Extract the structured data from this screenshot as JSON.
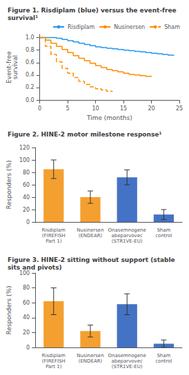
{
  "chart_data": [
    {
      "type": "step",
      "title": "Figure 1. Risdiplam (blue) versus the event-free survival¹",
      "xlabel": "Time (months)",
      "ylabel": "Event-free\nsurvival",
      "xlim": [
        0,
        25
      ],
      "xticks": [
        0,
        5,
        10,
        15,
        20,
        25
      ],
      "ylim": [
        0,
        1.05
      ],
      "yticks": [
        {
          "value": 0,
          "label": "0.0"
        },
        0.2,
        0.4,
        0.6,
        0.8,
        {
          "value": 1,
          "label": "1.0"
        }
      ],
      "grid": false,
      "legend": "upper right",
      "series": [
        {
          "name": "Risdiplam",
          "color": "#2196f3",
          "line_style": "solid",
          "x": [
            0,
            1,
            2,
            3,
            4,
            5,
            6,
            7,
            8,
            9,
            10,
            11,
            12,
            13,
            14,
            15,
            16,
            17,
            18,
            19,
            20,
            21,
            22,
            23,
            24
          ],
          "values": [
            1.0,
            1.0,
            1.0,
            0.99,
            0.97,
            0.95,
            0.93,
            0.91,
            0.89,
            0.87,
            0.85,
            0.84,
            0.83,
            0.82,
            0.81,
            0.8,
            0.79,
            0.78,
            0.77,
            0.76,
            0.75,
            0.74,
            0.73,
            0.72,
            0.71
          ]
        },
        {
          "name": "Nusinersen",
          "color": "#ff8c00",
          "line_style": "solid",
          "x": [
            0,
            1,
            2,
            3,
            4,
            5,
            6,
            7,
            8,
            9,
            10,
            11,
            12,
            13,
            14,
            15,
            16,
            17,
            18,
            19,
            20
          ],
          "values": [
            1.0,
            0.96,
            0.91,
            0.86,
            0.81,
            0.76,
            0.71,
            0.67,
            0.63,
            0.59,
            0.55,
            0.52,
            0.49,
            0.47,
            0.45,
            0.43,
            0.41,
            0.4,
            0.39,
            0.38,
            0.37
          ]
        },
        {
          "name": "Sham",
          "color": "#ff8c00",
          "line_style": "dashed",
          "x": [
            0,
            1,
            2,
            3,
            4,
            5,
            6,
            7,
            8,
            9,
            10,
            11,
            12,
            13
          ],
          "values": [
            1.0,
            0.86,
            0.73,
            0.61,
            0.51,
            0.43,
            0.36,
            0.3,
            0.25,
            0.21,
            0.18,
            0.16,
            0.14,
            0.13
          ]
        }
      ]
    },
    {
      "type": "bar",
      "title": "Figure 2. HINE-2 motor milestone response¹",
      "ylabel": "Responders (%)",
      "categories": [
        "Risdiplam\n(FIREFISH\nPart 1)",
        "Nusinersen\n(ENDEAR)",
        "Onasemnogene\nabeparvovec\n(STR1VE-EU)",
        "Sham\ncontrol"
      ],
      "values": [
        85,
        40,
        72,
        12
      ],
      "errors": [
        15,
        10,
        12,
        8
      ],
      "colors": [
        "#f4a030",
        "#f4a030",
        "#4472c4",
        "#4472c4"
      ],
      "ylim": [
        0,
        120
      ],
      "yticks": [
        0,
        20,
        40,
        60,
        80,
        100,
        120
      ],
      "grid": false
    },
    {
      "type": "bar",
      "title": "Figure 3. HINE-2 sitting without support (stable sits and pivots)",
      "ylabel": "Responders (%)",
      "categories": [
        "Risdiplam\n(FIREFISH\nPart 1)",
        "Nusinersen\n(ENDEAR)",
        "Onasemnogene\nabeparvovec\n(STR1VE-EU)",
        "Sham\ncontrol"
      ],
      "values": [
        62,
        22,
        58,
        5
      ],
      "errors": [
        18,
        8,
        14,
        5
      ],
      "colors": [
        "#f4a030",
        "#f4a030",
        "#4472c4",
        "#4472c4"
      ],
      "ylim": [
        0,
        100
      ],
      "yticks": [
        0,
        20,
        40,
        60,
        80,
        100
      ],
      "grid": false
    }
  ]
}
